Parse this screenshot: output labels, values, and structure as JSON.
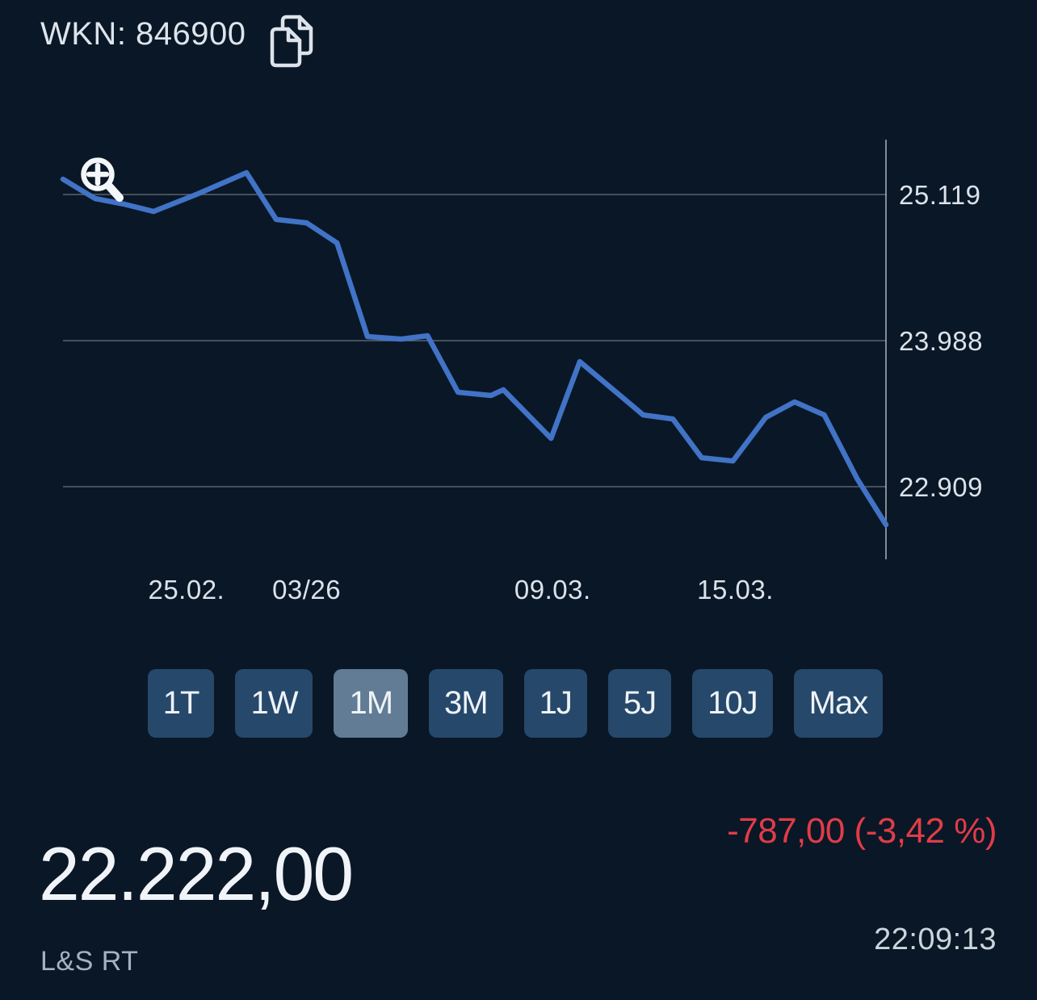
{
  "header": {
    "wkn_label": "WKN: 846900"
  },
  "chart_data": {
    "type": "line",
    "y_axis": {
      "scale": "log",
      "gridlines": [
        {
          "label": "25.119",
          "value": 25119
        },
        {
          "label": "23.988",
          "value": 23988
        },
        {
          "label": "22.909",
          "value": 22909
        }
      ]
    },
    "x_axis": {
      "ticks": [
        {
          "label": "25.02.",
          "pos": 0.15
        },
        {
          "label": "03/26",
          "pos": 0.296
        },
        {
          "label": "09.03.",
          "pos": 0.595
        },
        {
          "label": "15.03.",
          "pos": 0.817
        }
      ]
    },
    "series": [
      {
        "name": "price",
        "color": "#4173c6",
        "points": [
          [
            0.0,
            25241
          ],
          [
            0.039,
            25087
          ],
          [
            0.075,
            25042
          ],
          [
            0.11,
            24985
          ],
          [
            0.164,
            25125
          ],
          [
            0.223,
            25292
          ],
          [
            0.259,
            24922
          ],
          [
            0.296,
            24896
          ],
          [
            0.333,
            24738
          ],
          [
            0.37,
            24019
          ],
          [
            0.411,
            24000
          ],
          [
            0.443,
            24025
          ],
          [
            0.48,
            23601
          ],
          [
            0.52,
            23577
          ],
          [
            0.535,
            23620
          ],
          [
            0.593,
            23261
          ],
          [
            0.628,
            23830
          ],
          [
            0.705,
            23433
          ],
          [
            0.741,
            23403
          ],
          [
            0.776,
            23119
          ],
          [
            0.814,
            23095
          ],
          [
            0.854,
            23415
          ],
          [
            0.889,
            23529
          ],
          [
            0.925,
            23433
          ],
          [
            0.965,
            22966
          ],
          [
            1.0,
            22636
          ]
        ]
      }
    ]
  },
  "range_buttons": [
    {
      "label": "1T",
      "selected": false
    },
    {
      "label": "1W",
      "selected": false
    },
    {
      "label": "1M",
      "selected": true
    },
    {
      "label": "3M",
      "selected": false
    },
    {
      "label": "1J",
      "selected": false
    },
    {
      "label": "5J",
      "selected": false
    },
    {
      "label": "10J",
      "selected": false
    },
    {
      "label": "Max",
      "selected": false
    }
  ],
  "quote": {
    "price": "22.222,00",
    "change": "-787,00 (-3,42 %)",
    "source": "L&S RT",
    "time": "22:09:13"
  },
  "colors": {
    "background": "#0a1726",
    "text_primary": "#e8eef4",
    "text_secondary": "#a7b2bd",
    "line": "#4173c6",
    "negative": "#e13c48",
    "button_bg": "#26486a",
    "button_selected_bg": "#617c94",
    "grid": "rgba(255,255,255,0.33)",
    "axis": "rgba(255,255,255,0.5)"
  }
}
